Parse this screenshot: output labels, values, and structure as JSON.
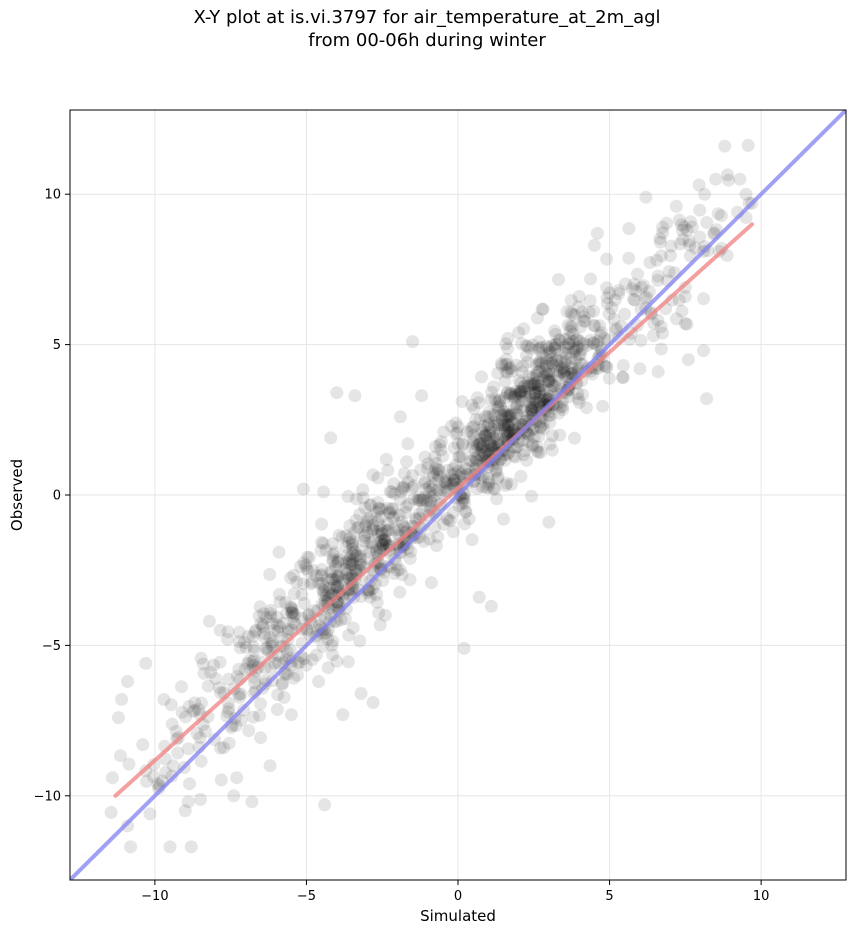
{
  "chart_data": {
    "type": "scatter",
    "title": "X-Y plot at is.vi.3797 for air_temperature_at_2m_agl",
    "subtitle": "from 00-06h during winter",
    "xlabel": "Simulated",
    "ylabel": "Observed",
    "xlim": [
      -12.8,
      12.8
    ],
    "ylim": [
      -12.8,
      12.8
    ],
    "xticks": [
      -10,
      -5,
      0,
      5,
      10
    ],
    "yticks": [
      -10,
      -5,
      0,
      5,
      10
    ],
    "xtick_labels": [
      "−10",
      "−5",
      "0",
      "5",
      "10"
    ],
    "ytick_labels": [
      "−10",
      "−5",
      "0",
      "5",
      "10"
    ],
    "grid": true,
    "point_color": "#000000",
    "point_alpha": 0.1,
    "sample_points": [
      [
        -11.4,
        -9.4
      ],
      [
        -11.2,
        -7.4
      ],
      [
        -10.9,
        -11.0
      ],
      [
        -10.8,
        -11.7
      ],
      [
        -10.9,
        -6.2
      ],
      [
        -10.4,
        -8.3
      ],
      [
        -10.3,
        -5.6
      ],
      [
        -9.9,
        -9.6
      ],
      [
        -9.7,
        -6.8
      ],
      [
        -9.5,
        -11.7
      ],
      [
        -9.0,
        -10.5
      ],
      [
        -8.8,
        -11.7
      ],
      [
        -8.9,
        -10.2
      ],
      [
        -8.5,
        -7.3
      ],
      [
        -8.0,
        -6.1
      ],
      [
        -8.2,
        -4.2
      ],
      [
        -7.6,
        -4.8
      ],
      [
        -7.3,
        -9.4
      ],
      [
        -7.4,
        -10.0
      ],
      [
        -6.8,
        -10.2
      ],
      [
        -6.2,
        -9.0
      ],
      [
        -6.4,
        -4.6
      ],
      [
        -5.8,
        -6.3
      ],
      [
        -5.5,
        -7.3
      ],
      [
        -5.1,
        0.2
      ],
      [
        -4.2,
        1.9
      ],
      [
        -4.0,
        3.4
      ],
      [
        -3.4,
        3.3
      ],
      [
        -4.4,
        -10.3
      ],
      [
        -4.6,
        -6.2
      ],
      [
        -3.8,
        -7.3
      ],
      [
        -3.2,
        -6.6
      ],
      [
        -2.8,
        -6.9
      ],
      [
        -2.4,
        -4.0
      ],
      [
        -1.5,
        5.1
      ],
      [
        -1.2,
        3.3
      ],
      [
        -1.9,
        2.6
      ],
      [
        0.2,
        -5.1
      ],
      [
        0.7,
        -3.4
      ],
      [
        1.1,
        -3.7
      ],
      [
        1.5,
        -0.8
      ],
      [
        2.0,
        5.4
      ],
      [
        3.0,
        -0.9
      ],
      [
        3.6,
        6.1
      ],
      [
        4.0,
        6.6
      ],
      [
        4.5,
        8.3
      ],
      [
        4.6,
        8.7
      ],
      [
        5.3,
        6.7
      ],
      [
        6.0,
        4.2
      ],
      [
        6.2,
        9.9
      ],
      [
        6.6,
        4.1
      ],
      [
        6.7,
        5.6
      ],
      [
        7.2,
        9.6
      ],
      [
        7.4,
        8.8
      ],
      [
        7.5,
        6.9
      ],
      [
        7.5,
        5.7
      ],
      [
        7.6,
        4.5
      ],
      [
        8.1,
        4.8
      ],
      [
        8.2,
        3.2
      ],
      [
        8.1,
        8.1
      ],
      [
        8.5,
        10.5
      ],
      [
        8.8,
        11.6
      ],
      [
        9.3,
        10.5
      ],
      [
        9.5,
        10.0
      ],
      [
        9.6,
        9.7
      ],
      [
        9.7,
        9.7
      ],
      [
        8.7,
        8.2
      ],
      [
        3.5,
        4.0
      ],
      [
        2.6,
        2.8
      ],
      [
        -2.0,
        -2.5
      ]
    ],
    "series": [
      {
        "kind": "regression-fit",
        "color": "#f08080",
        "x": [
          -11.3,
          9.7
        ],
        "y": [
          -10.0,
          9.0
        ]
      },
      {
        "kind": "one-to-one",
        "color": "#8080f0",
        "x": [
          -12.8,
          12.8
        ],
        "y": [
          -12.8,
          12.8
        ]
      }
    ]
  }
}
